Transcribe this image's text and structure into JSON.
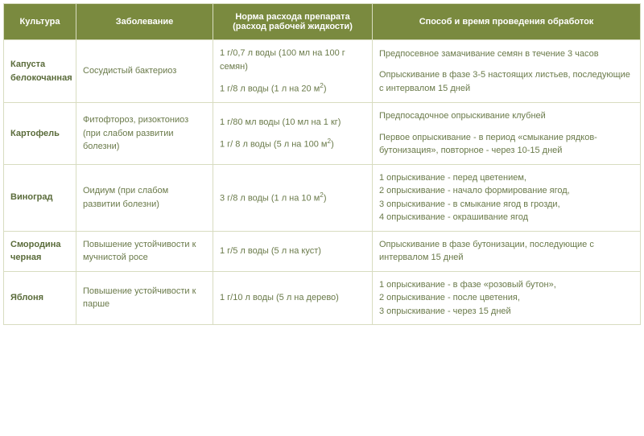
{
  "headers": {
    "culture": "Культура",
    "disease": "Заболевание",
    "rate": "Норма расхода препарата (расход рабочей жидкости)",
    "method": "Способ и время проведения обработок"
  },
  "rows": [
    {
      "culture": "Капуста белокочанная",
      "disease": "Сосудистый бактериоз",
      "rate_p1": "1 г/0,7 л воды (100 мл на 100 г семян)",
      "rate_p2_pre": "1 г/8 л воды (1 л на 20 м",
      "rate_p2_sup": "2",
      "rate_p2_post": ")",
      "method_p1": "Предпосевное замачивание семян в течение 3 часов",
      "method_p2": "Опрыскивание в фазе 3-5 настоящих листьев, последующие с интервалом 15 дней"
    },
    {
      "culture": "Картофель",
      "disease": "Фитофтороз, ризоктониоз (при слабом развитии болезни)",
      "rate_p1": "1 г/80 мл воды (10 мл на 1 кг)",
      "rate_p2_pre": "1 г/ 8 л воды (5 л на 100 м",
      "rate_p2_sup": "2",
      "rate_p2_post": ")",
      "method_p1": "Предпосадочное опрыскивание клубней",
      "method_p2": "Первое опрыскивание - в период «смыкание рядков-бутонизация», повторное - через 10-15 дней"
    },
    {
      "culture": "Виноград",
      "disease": "Оидиум (при слабом развитии болезни)",
      "rate_pre": "3 г/8 л воды (1 л на 10 м",
      "rate_sup": "2",
      "rate_post": ")",
      "method_l1": "1 опрыскивание - перед цветением,",
      "method_l2": "2 опрыскивание - начало формирование ягод,",
      "method_l3": "3 опрыскивание - в смыкание ягод в грозди,",
      "method_l4": "4 опрыскивание - окрашивание ягод"
    },
    {
      "culture": "Смородина черная",
      "disease": "Повышение устойчивости к мучнистой росе",
      "rate": "1 г/5 л воды (5 л на куст)",
      "method": "Опрыскивание в фазе бутонизации, последующие с интервалом 15 дней"
    },
    {
      "culture": "Яблоня",
      "disease": "Повышение устойчивости к парше",
      "rate": "1 г/10 л воды (5 л на дерево)",
      "method_l1": "1 опрыскивание - в фазе «розовый бутон»,",
      "method_l2": "2 опрыскивание - после цветения,",
      "method_l3": "3 опрыскивание - через 15 дней"
    }
  ]
}
